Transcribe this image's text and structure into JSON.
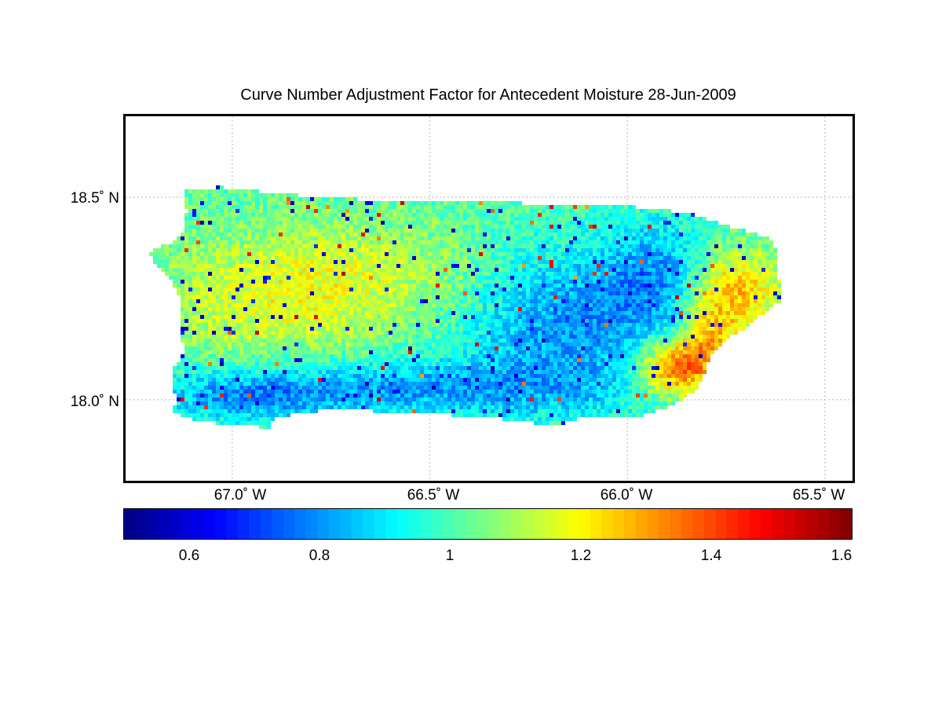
{
  "title": "Curve Number Adjustment Factor for Antecedent Moisture 28-Jun-2009",
  "map": {
    "lat_ticks": [
      {
        "value": 18.5,
        "label": "18.5˚ N"
      },
      {
        "value": 18.0,
        "label": "18.0˚ N"
      }
    ],
    "lon_ticks": [
      {
        "value": -67.0,
        "label": "67.0˚ W"
      },
      {
        "value": -66.5,
        "label": "66.5˚ W"
      },
      {
        "value": -66.0,
        "label": "66.0˚ W"
      },
      {
        "value": -65.5,
        "label": "65.5˚ W"
      }
    ],
    "lon_range": [
      -67.27,
      -65.43
    ],
    "lat_range": [
      17.8,
      18.7
    ],
    "grid": true,
    "colormap": "jet"
  },
  "colorbar": {
    "range": [
      0.5,
      1.62
    ],
    "ticks": [
      {
        "value": 0.6,
        "label": "0.6"
      },
      {
        "value": 0.8,
        "label": "0.8"
      },
      {
        "value": 1.0,
        "label": "1"
      },
      {
        "value": 1.2,
        "label": "1.2"
      },
      {
        "value": 1.4,
        "label": "1.4"
      },
      {
        "value": 1.6,
        "label": "1.6"
      }
    ],
    "segments": 64
  }
}
